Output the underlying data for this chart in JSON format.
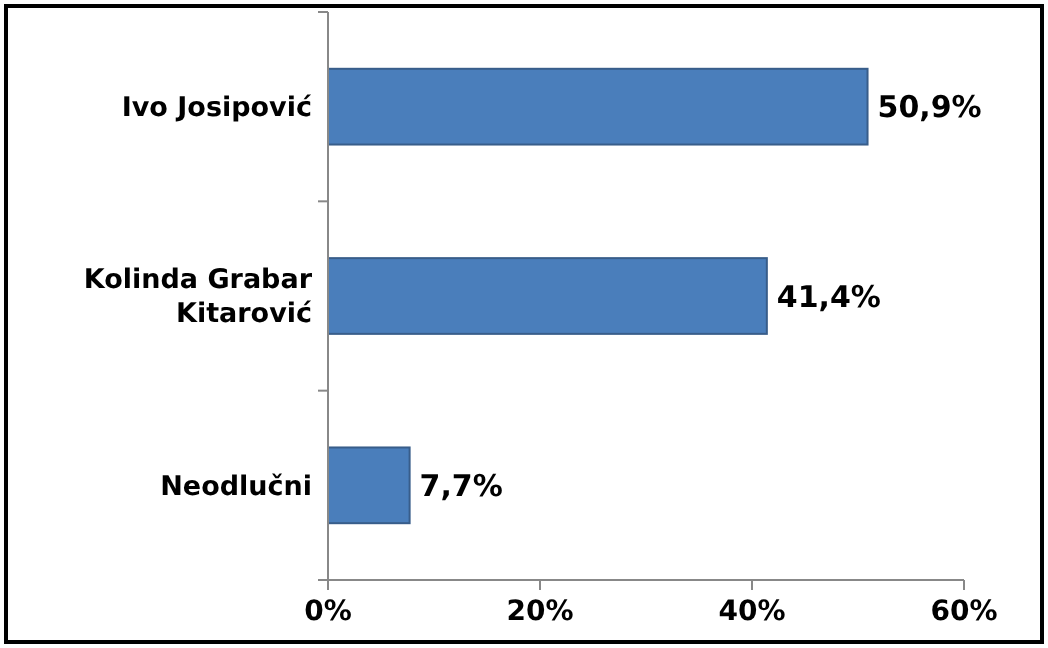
{
  "chart_data": {
    "type": "bar",
    "orientation": "horizontal",
    "categories": [
      "Ivo Josipović",
      "Kolinda Grabar Kitarović",
      "Neodlučni"
    ],
    "values": [
      50.9,
      41.4,
      7.7
    ],
    "color": "#4a7ebb",
    "value_labels": [
      "50,9%",
      "41,4%",
      "7,7%"
    ],
    "xlim": [
      0,
      60
    ],
    "xticks": [
      {
        "value": 0,
        "label": "0%"
      },
      {
        "value": 20,
        "label": "20%"
      },
      {
        "value": 40,
        "label": "40%"
      },
      {
        "value": 60,
        "label": "60%"
      }
    ],
    "grid": false
  }
}
